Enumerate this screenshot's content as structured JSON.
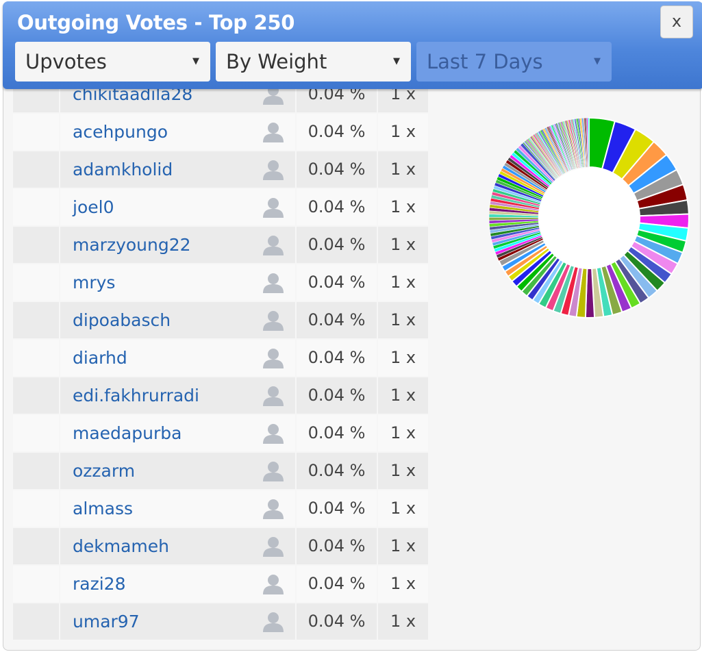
{
  "dialog": {
    "title": "Outgoing Votes - Top 250",
    "close_label": "x"
  },
  "filters": {
    "vote_type": "Upvotes",
    "sort": "By Weight",
    "period": "Last 7 Days",
    "period_disabled": true
  },
  "rows": [
    {
      "name": "chikitaadila28",
      "percent": "0.04 %",
      "count": "1 x"
    },
    {
      "name": "acehpungo",
      "percent": "0.04 %",
      "count": "1 x"
    },
    {
      "name": "adamkholid",
      "percent": "0.04 %",
      "count": "1 x"
    },
    {
      "name": "joel0",
      "percent": "0.04 %",
      "count": "1 x"
    },
    {
      "name": "marzyoung22",
      "percent": "0.04 %",
      "count": "1 x"
    },
    {
      "name": "mrys",
      "percent": "0.04 %",
      "count": "1 x"
    },
    {
      "name": "dipoabasch",
      "percent": "0.04 %",
      "count": "1 x"
    },
    {
      "name": "diarhd",
      "percent": "0.04 %",
      "count": "1 x"
    },
    {
      "name": "edi.fakhrurradi",
      "percent": "0.04 %",
      "count": "1 x"
    },
    {
      "name": "maedapurba",
      "percent": "0.04 %",
      "count": "1 x"
    },
    {
      "name": "ozzarm",
      "percent": "0.04 %",
      "count": "1 x"
    },
    {
      "name": "almass",
      "percent": "0.04 %",
      "count": "1 x"
    },
    {
      "name": "dekmameh",
      "percent": "0.04 %",
      "count": "1 x"
    },
    {
      "name": "razi28",
      "percent": "0.04 %",
      "count": "1 x"
    },
    {
      "name": "umar97",
      "percent": "0.04 %",
      "count": "1 x"
    }
  ],
  "icons": {
    "user": "user-avatar-icon"
  },
  "colors": {
    "titlebar": "#4e86dc",
    "link": "#2563b0",
    "donut_palette": [
      "#00bb00",
      "#2222ee",
      "#dddd00",
      "#ff9944",
      "#3399ff",
      "#999999",
      "#880000",
      "#444444",
      "#ee22ee",
      "#22ffff",
      "#00cc33",
      "#55aaee",
      "#ee88ee",
      "#4455cc",
      "#228822",
      "#88bbee",
      "#555599",
      "#66dd22",
      "#9933cc",
      "#88aa44",
      "#44ddbb",
      "#cccc99",
      "#771177",
      "#bbbb00",
      "#cc88cc",
      "#ee2244",
      "#55ccaa",
      "#ee4488",
      "#33cc88",
      "#88ccff",
      "#3333cc",
      "#44bb44"
    ]
  }
}
